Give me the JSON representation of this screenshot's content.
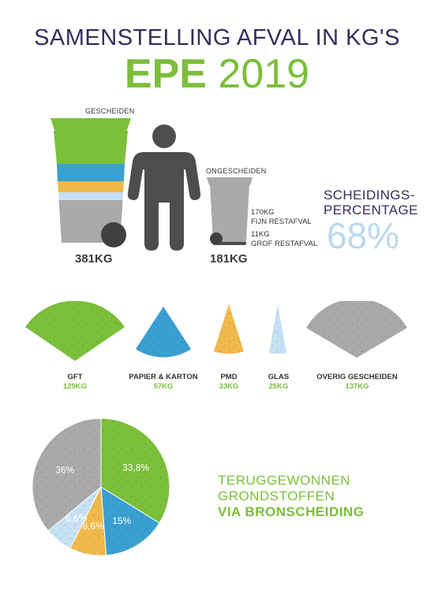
{
  "header": {
    "title_line1": "SAMENSTELLING AFVAL IN KG'S",
    "title_place": "EPE",
    "title_year": "2019"
  },
  "bins": {
    "separated_label": "GESCHEIDEN",
    "separated_total": "381KG",
    "unseparated_label": "ONGESCHEIDEN",
    "unseparated_total": "181KG",
    "fine_amount": "170KG",
    "fine_label": "FIJN RESTAFVAL",
    "coarse_amount": "11KG",
    "coarse_label": "GROF RESTAFVAL"
  },
  "separation": {
    "label_line1": "SCHEIDINGS-",
    "label_line2": "PERCENTAGE",
    "percentage": "68%"
  },
  "categories": [
    {
      "label": "GFT",
      "value": "129KG",
      "color": "#7bbf3a"
    },
    {
      "label": "PAPIER & KARTON",
      "value": "57KG",
      "color": "#3a9fd1"
    },
    {
      "label": "PMD",
      "value": "33KG",
      "color": "#f0b94b"
    },
    {
      "label": "GLAS",
      "value": "25KG",
      "color": "#c6e0f4"
    },
    {
      "label": "OVERIG GESCHEIDEN",
      "value": "137KG",
      "color": "#a9a9a9"
    }
  ],
  "recovered": {
    "line1": "TERUGGEWONNEN",
    "line2": "GRONDSTOFFEN",
    "line3": "VIA BRONSCHEIDING"
  },
  "chart_data": {
    "type": "pie",
    "slices": [
      {
        "name": "GFT",
        "value": 33.8,
        "label": "33,8%",
        "color": "#7bbf3a"
      },
      {
        "name": "PAPIER & KARTON",
        "value": 15,
        "label": "15%",
        "color": "#3a9fd1"
      },
      {
        "name": "PMD",
        "value": 8.6,
        "label": "8,6%",
        "color": "#f0b94b"
      },
      {
        "name": "GLAS",
        "value": 6.6,
        "label": "6,6%",
        "color": "#c6e0f4"
      },
      {
        "name": "OVERIG GESCHEIDEN",
        "value": 36,
        "label": "36%",
        "color": "#a9a9a9"
      }
    ]
  }
}
